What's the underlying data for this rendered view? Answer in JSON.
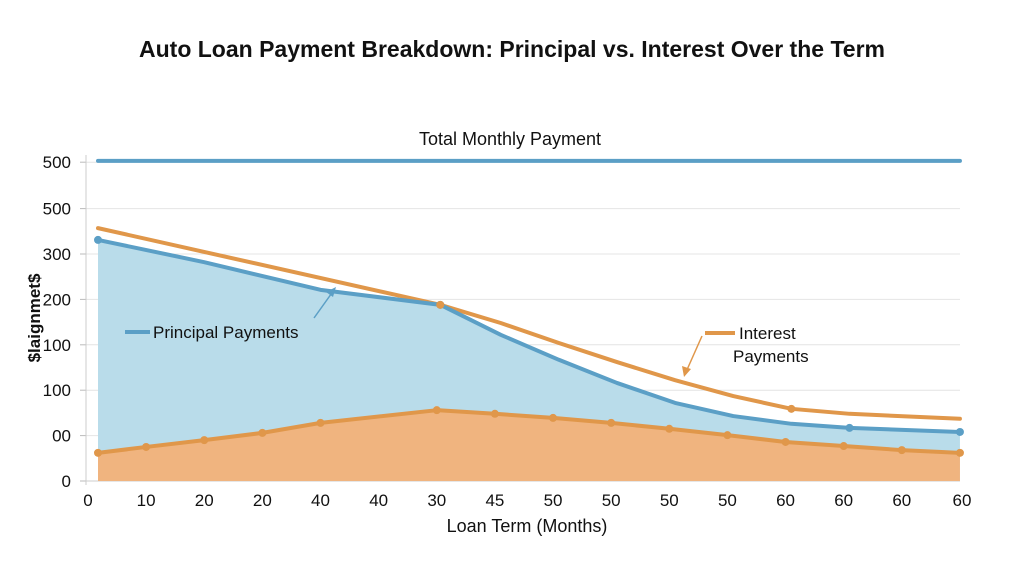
{
  "chart_data": {
    "type": "area",
    "title": "Auto Loan Payment Breakdown: Principal vs. Interest Over the Term",
    "xlabel": "Loan Term (Months)",
    "ylabel": "$laignmet$",
    "x_tick_labels": [
      "0",
      "10",
      "20",
      "20",
      "40",
      "40",
      "30",
      "45",
      "50",
      "50",
      "50",
      "50",
      "60",
      "60",
      "60",
      "60"
    ],
    "y_tick_labels": [
      "0",
      "00",
      "100",
      "100",
      "200",
      "300",
      "500",
      "500"
    ],
    "ylim": [
      0,
      700
    ],
    "grid": true,
    "colors": {
      "total": "#5b9fc6",
      "principal_line": "#5b9fc6",
      "principal_fill": "#b9dcea",
      "interest_line": "#e0974a",
      "interest_fill": "#f0b47f"
    },
    "annotations": {
      "total": "Total Monthly Payment",
      "principal": "Principal Payments",
      "interest_line1": "Interest",
      "interest_line2": "Payments"
    },
    "series": [
      {
        "name": "Total Monthly Payment",
        "kind": "line",
        "x": [
          0.17,
          15
        ],
        "y": [
          705,
          705
        ]
      },
      {
        "name": "Principal Payments",
        "kind": "area",
        "x": [
          0.17,
          2,
          4,
          6.06,
          7.1,
          8.1,
          9.1,
          10.1,
          11.1,
          12.1,
          13.1,
          15
        ],
        "y": [
          531,
          482,
          421,
          388,
          322,
          267,
          216,
          172,
          143,
          126,
          117,
          108
        ],
        "markers": [
          0,
          3,
          12,
          13,
          15
        ]
      },
      {
        "name": "Interest Payments",
        "kind": "line",
        "x": [
          0.17,
          6.06,
          7.1,
          8.1,
          9.1,
          10.1,
          11.1,
          12.1,
          13.1,
          15
        ],
        "y": [
          557,
          388,
          348,
          304,
          262,
          222,
          187,
          159,
          148,
          137
        ],
        "markers": [
          6.06,
          12.1
        ]
      },
      {
        "kind": "area",
        "x": [
          0.17,
          1,
          2,
          3,
          4,
          6,
          7,
          8,
          9,
          10,
          11,
          12,
          13,
          14,
          15
        ],
        "y": [
          62,
          75,
          90,
          106,
          128,
          156,
          148,
          139,
          128,
          115,
          101,
          86,
          77,
          68,
          62
        ]
      }
    ]
  }
}
